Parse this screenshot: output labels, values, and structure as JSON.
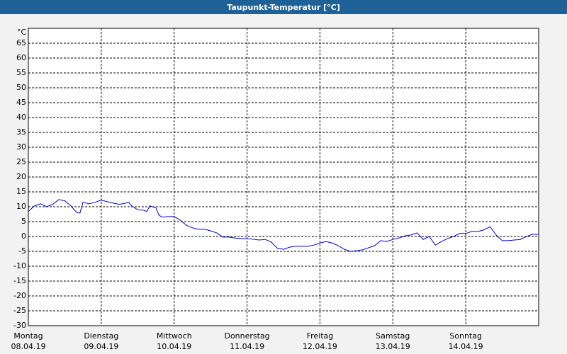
{
  "chart_data": {
    "type": "line",
    "title": "Taupunkt-Temperatur [°C]",
    "y_unit": "°C",
    "x": [
      0,
      2,
      4,
      6,
      8,
      10,
      12,
      14,
      16,
      17,
      18,
      20,
      22,
      24,
      26,
      28,
      30,
      32,
      33,
      34,
      36,
      38,
      39,
      40,
      42,
      43,
      44,
      46,
      48,
      50,
      52,
      54,
      56,
      58,
      60,
      62,
      64,
      66,
      68,
      70,
      72,
      76,
      78,
      80,
      82,
      84,
      86,
      88,
      92,
      94,
      96,
      98,
      100,
      102,
      104,
      106,
      108,
      110,
      112,
      114,
      116,
      118,
      120,
      122,
      124,
      126,
      128,
      130,
      132,
      134,
      136,
      138,
      140,
      142,
      144,
      146,
      148,
      150,
      152,
      154,
      156,
      158,
      160,
      162,
      164,
      166,
      168
    ],
    "series": [
      {
        "name": "Taupunkt",
        "color": "#0000cc",
        "values": [
          8.4,
          10.3,
          11,
          10,
          10.8,
          12.4,
          12,
          10.3,
          8,
          7.9,
          11.5,
          11,
          11.5,
          12.2,
          11.7,
          11.2,
          10.8,
          11.2,
          11.5,
          10.3,
          9,
          8.8,
          8.4,
          10.3,
          9.6,
          7.2,
          6.5,
          6.7,
          6.7,
          5.5,
          3.8,
          2.9,
          2.4,
          2.4,
          1.9,
          1.2,
          -0.2,
          -0.2,
          -0.5,
          -0.7,
          -0.7,
          -1.2,
          -1,
          -1.9,
          -4,
          -4.3,
          -3.6,
          -3.3,
          -3.3,
          -2.9,
          -2.2,
          -1.7,
          -2.2,
          -3.1,
          -4.3,
          -5,
          -4.8,
          -4.5,
          -3.8,
          -3.1,
          -1.4,
          -1.7,
          -1,
          -0.5,
          0.2,
          0.5,
          1.2,
          -1,
          0,
          -2.9,
          -1.7,
          -0.7,
          0,
          1,
          1,
          1.7,
          1.7,
          2.2,
          3.3,
          0.5,
          -1.4,
          -1.4,
          -1.2,
          -1,
          0,
          0.7,
          0.7
        ]
      }
    ],
    "xlim": [
      0,
      168
    ],
    "xticks": [
      {
        "value": 0,
        "label": "Montag"
      },
      {
        "value": 24,
        "label": "Dienstag"
      },
      {
        "value": 48,
        "label": "Mittwoch"
      },
      {
        "value": 72,
        "label": "Donnerstag"
      },
      {
        "value": 96,
        "label": "Freitag"
      },
      {
        "value": 120,
        "label": "Samstag"
      },
      {
        "value": 144,
        "label": "Sonntag"
      }
    ],
    "xtick_dates": [
      "08.04.19",
      "09.04.19",
      "10.04.19",
      "11.04.19",
      "12.04.19",
      "13.04.19",
      "14.04.19"
    ],
    "ylim": [
      -30,
      70
    ],
    "yticks": [
      -30,
      -25,
      -20,
      -15,
      -10,
      -5,
      0,
      5,
      10,
      15,
      20,
      25,
      30,
      35,
      40,
      45,
      50,
      55,
      60,
      65
    ],
    "grid": true
  }
}
